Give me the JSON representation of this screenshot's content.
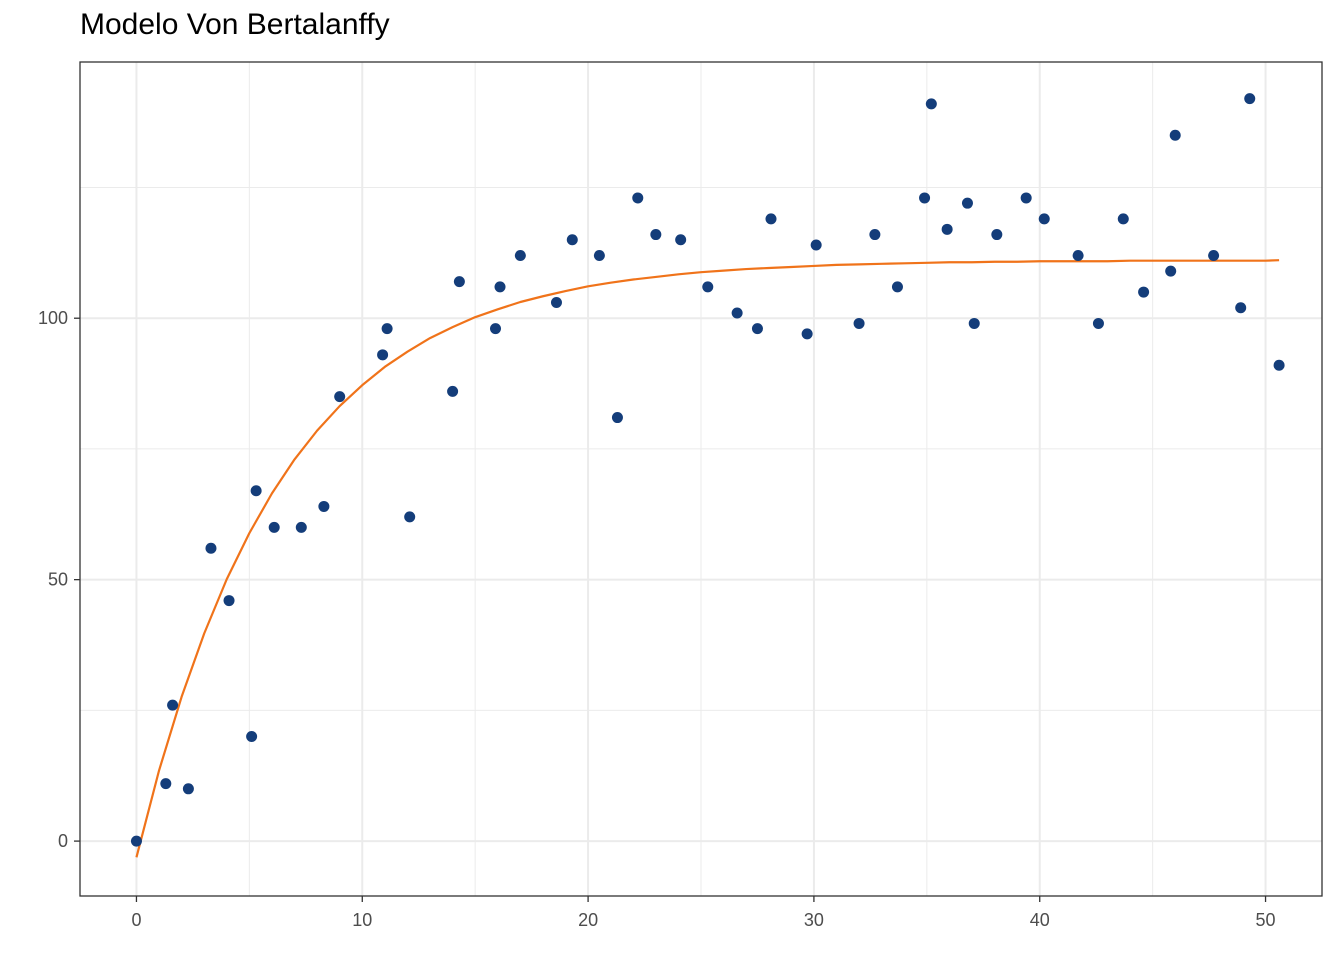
{
  "chart_data": {
    "type": "scatter",
    "title": "Modelo Von Bertalanffy",
    "xlabel": "",
    "ylabel": "",
    "xlim": [
      -2.5,
      52.5
    ],
    "ylim": [
      -10.5,
      149
    ],
    "x_ticks": [
      0,
      10,
      20,
      30,
      40,
      50
    ],
    "y_ticks": [
      0,
      50,
      100
    ],
    "x_minor_ticks": [
      5,
      15,
      25,
      35,
      45
    ],
    "y_minor_ticks": [
      25,
      75,
      125
    ],
    "grid": true,
    "legend": "none",
    "colors": {
      "points": "#143d7a",
      "curve": "#f0731a",
      "grid": "#ebebeb",
      "panel_border": "#333333"
    },
    "series": [
      {
        "kind": "points",
        "x": [
          0,
          1.3,
          1.6,
          2.3,
          3.3,
          4.1,
          5.1,
          5.3,
          6.1,
          7.3,
          8.3,
          9.0,
          10.9,
          11.1,
          12.1,
          14.0,
          14.3,
          15.9,
          16.1,
          17.0,
          18.6,
          19.3,
          20.5,
          21.3,
          22.2,
          23.0,
          24.1,
          25.3,
          26.6,
          27.5,
          28.1,
          29.7,
          30.1,
          32.0,
          32.7,
          33.7,
          34.9,
          35.2,
          35.9,
          36.8,
          37.1,
          38.1,
          39.4,
          40.2,
          41.7,
          42.6,
          43.7,
          44.6,
          45.8,
          46.0,
          47.7,
          48.9,
          49.3,
          50.6
        ],
        "y": [
          0,
          11,
          26,
          10,
          56,
          46,
          20,
          67,
          60,
          60,
          64,
          85,
          93,
          98,
          62,
          86,
          107,
          98,
          106,
          112,
          103,
          115,
          112,
          81,
          123,
          116,
          115,
          106,
          101,
          98,
          119,
          97,
          114,
          99,
          116,
          106,
          123,
          141,
          117,
          122,
          99,
          116,
          123,
          119,
          112,
          99,
          119,
          105,
          109,
          135,
          112,
          102,
          142,
          91
        ]
      },
      {
        "kind": "line",
        "x": [
          0,
          1,
          2,
          3,
          4,
          5,
          6,
          7,
          8,
          9,
          10,
          11,
          12,
          13,
          14,
          15,
          16,
          17,
          18,
          19,
          20,
          21,
          22,
          23,
          24,
          25,
          26,
          27,
          28,
          29,
          30,
          31,
          32,
          33,
          34,
          35,
          36,
          37,
          38,
          39,
          40,
          41,
          42,
          43,
          44,
          45,
          46,
          47,
          48,
          49,
          50,
          50.6
        ],
        "y": [
          -3.1,
          13.5,
          27.6,
          39.7,
          50.1,
          58.9,
          66.5,
          73.0,
          78.5,
          83.2,
          87.2,
          90.7,
          93.6,
          96.2,
          98.3,
          100.2,
          101.7,
          103.1,
          104.2,
          105.2,
          106.1,
          106.8,
          107.4,
          107.9,
          108.4,
          108.8,
          109.1,
          109.4,
          109.6,
          109.8,
          110.0,
          110.2,
          110.3,
          110.4,
          110.5,
          110.6,
          110.7,
          110.7,
          110.8,
          110.8,
          110.9,
          110.9,
          110.9,
          110.9,
          111.0,
          111.0,
          111.0,
          111.0,
          111.0,
          111.0,
          111.0,
          111.1
        ]
      }
    ]
  }
}
